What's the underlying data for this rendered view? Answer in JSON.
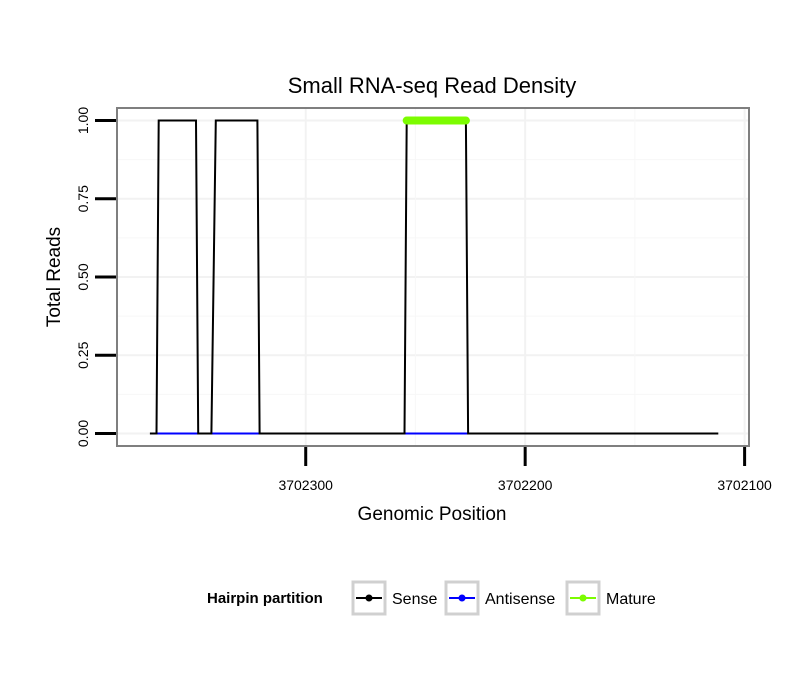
{
  "chart_data": {
    "type": "line",
    "title": "Small RNA-seq Read Density",
    "xlabel": "Genomic Position",
    "ylabel": "Total Reads",
    "x_reversed": true,
    "xlim": [
      3702386,
      3702098
    ],
    "ylim": [
      -0.04,
      1.04
    ],
    "x_ticks": [
      3702300,
      3702200,
      3702100
    ],
    "x_tick_labels": [
      "3702300",
      "3702200",
      "3702100"
    ],
    "y_ticks": [
      0,
      0.25,
      0.5,
      0.75,
      1
    ],
    "y_tick_labels": [
      "0.00",
      "0.25",
      "0.50",
      "0.75",
      "1.00"
    ],
    "grid": true,
    "legend_position": "bottom",
    "legend_title": "Hairpin partition",
    "series": [
      {
        "name": "Sense",
        "color": "#000000",
        "x": [
          3702371,
          3702368,
          3702367,
          3702350,
          3702349,
          3702343,
          3702341,
          3702322,
          3702321,
          3702255,
          3702254,
          3702227,
          3702226,
          3702112
        ],
        "y": [
          0,
          0,
          1,
          1,
          0,
          0,
          1,
          1,
          0,
          0,
          1,
          1,
          0,
          0
        ]
      },
      {
        "name": "Antisense",
        "color": "#0000ff",
        "x": [
          3702368,
          3702321,
          3702255,
          3702226
        ],
        "y": [
          0,
          0,
          0,
          0
        ],
        "segments": [
          [
            0,
            1
          ],
          [
            2,
            3
          ]
        ]
      },
      {
        "name": "Mature",
        "color": "#7cfc00",
        "x": [
          3702254,
          3702227
        ],
        "y": [
          1,
          1
        ]
      }
    ]
  }
}
